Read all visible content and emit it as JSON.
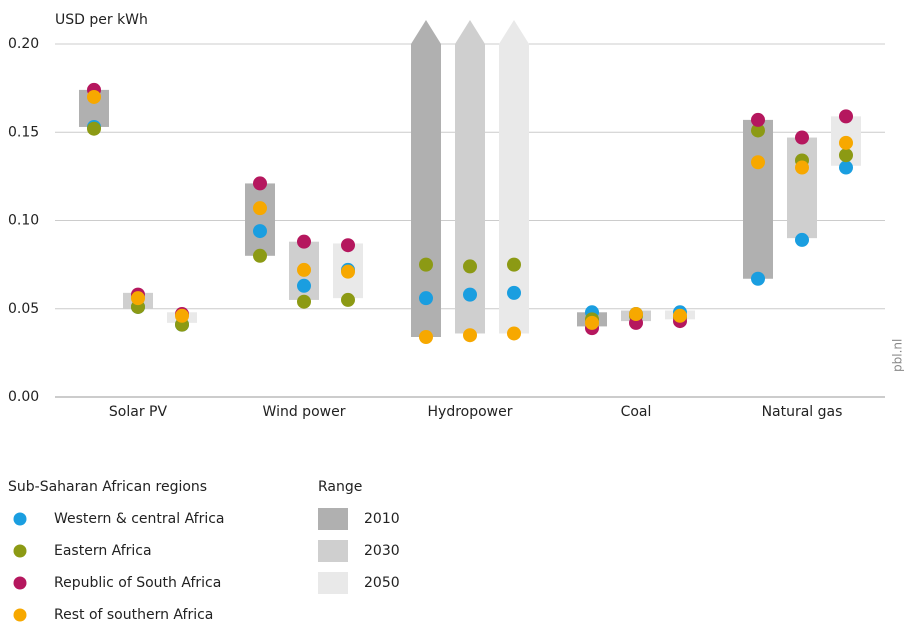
{
  "chart_data": {
    "type": "range-dot",
    "y_label": "USD per kWh",
    "source": "pbl.nl",
    "categories": [
      "Solar PV",
      "Wind power",
      "Hydropower",
      "Coal",
      "Natural gas"
    ],
    "ylim": [
      0,
      0.2
    ],
    "yticks": [
      {
        "value": 0,
        "label": "0.00"
      },
      {
        "value": 0.05,
        "label": "0.05"
      },
      {
        "value": 0.1,
        "label": "0.10"
      },
      {
        "value": 0.15,
        "label": "0.15"
      },
      {
        "value": 0.2,
        "label": "0.20"
      }
    ],
    "grid": true,
    "range_legend_title": "Range",
    "ranges": [
      {
        "name": "2010",
        "color": "#b0b0b0",
        "low": [
          0.153,
          0.08,
          0.034,
          0.04,
          0.067
        ],
        "high": [
          0.174,
          0.121,
          0.2,
          0.048,
          0.157
        ]
      },
      {
        "name": "2030",
        "color": "#cfcfcf",
        "low": [
          0.05,
          0.055,
          0.036,
          0.043,
          0.09
        ],
        "high": [
          0.059,
          0.088,
          0.2,
          0.049,
          0.147
        ]
      },
      {
        "name": "2050",
        "color": "#e9e9e9",
        "low": [
          0.042,
          0.056,
          0.036,
          0.044,
          0.131
        ],
        "high": [
          0.048,
          0.087,
          0.2,
          0.049,
          0.159
        ]
      }
    ],
    "series_legend_title": "Sub-Saharan African regions",
    "series": [
      {
        "name": "Western & central Africa",
        "color": "#1a9ee0",
        "values": [
          [
            0.153,
            0.051,
            0.041
          ],
          [
            0.094,
            0.063,
            0.072
          ],
          [
            0.056,
            0.058,
            0.059
          ],
          [
            0.048,
            0.047,
            0.048
          ],
          [
            0.067,
            0.089,
            0.13
          ]
        ]
      },
      {
        "name": "Eastern Africa",
        "color": "#8c9a14",
        "values": [
          [
            0.152,
            0.051,
            0.041
          ],
          [
            0.08,
            0.054,
            0.055
          ],
          [
            0.075,
            0.074,
            0.075
          ],
          [
            0.044,
            0.046,
            0.045
          ],
          [
            0.151,
            0.134,
            0.137
          ]
        ]
      },
      {
        "name": "Republic of South Africa",
        "color": "#b5175e",
        "values": [
          [
            0.174,
            0.058,
            0.047
          ],
          [
            0.121,
            0.088,
            0.086
          ],
          [
            null,
            null,
            null
          ],
          [
            0.039,
            0.042,
            0.043
          ],
          [
            0.157,
            0.147,
            0.159
          ]
        ]
      },
      {
        "name": "Rest of southern Africa",
        "color": "#f7a800",
        "values": [
          [
            0.17,
            0.056,
            0.046
          ],
          [
            0.107,
            0.072,
            0.071
          ],
          [
            0.034,
            0.035,
            0.036
          ],
          [
            0.042,
            0.047,
            0.046
          ],
          [
            0.133,
            0.13,
            0.144
          ]
        ]
      }
    ]
  }
}
